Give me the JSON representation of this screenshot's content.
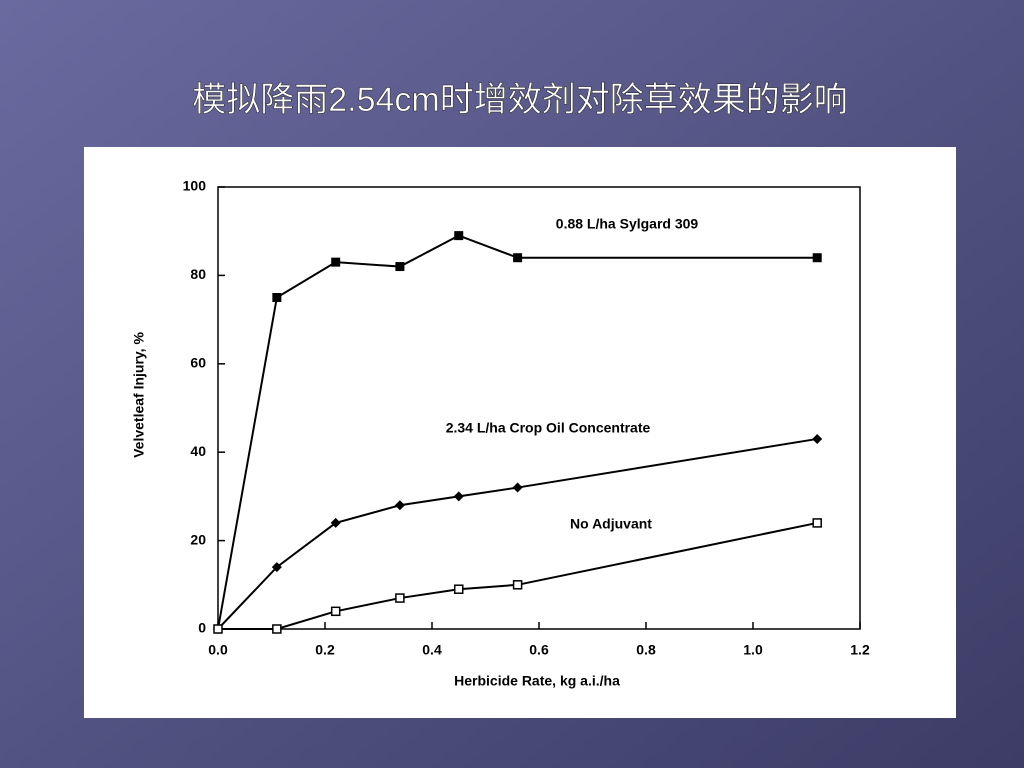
{
  "chart_data": {
    "type": "line",
    "title": "模拟降雨2.54cm时增效剂对除草效果的影响",
    "x_label": "Herbicide Rate, kg a.i./ha",
    "y_label": "Velvetleaf Injury, %",
    "x": [
      0,
      0.11,
      0.22,
      0.34,
      0.45,
      0.56,
      1.12
    ],
    "series": [
      {
        "name": "0.88 L/ha Sylgard 309",
        "color": "#000000",
        "marker": "square-x",
        "values": [
          0,
          75,
          83,
          82,
          89,
          84,
          84
        ]
      },
      {
        "name": "2.34 L/ha Crop Oil Concentrate",
        "color": "#000000",
        "marker": "diamond",
        "values": [
          0,
          14,
          24,
          28,
          30,
          32,
          43
        ]
      },
      {
        "name": "No Adjuvant",
        "color": "#000000",
        "marker": "open-square",
        "values": [
          0,
          0,
          4,
          7,
          9,
          10,
          24
        ]
      }
    ],
    "xlim": [
      0,
      1.2
    ],
    "xticks": [
      {
        "value": 0,
        "label": "0.0"
      },
      0.2,
      0.4,
      0.6,
      0.8,
      {
        "value": 1,
        "label": "1.0"
      },
      1.2
    ],
    "ylim": [
      0,
      100
    ],
    "yticks": [
      0,
      20,
      40,
      60,
      80,
      100
    ],
    "grid": false
  }
}
